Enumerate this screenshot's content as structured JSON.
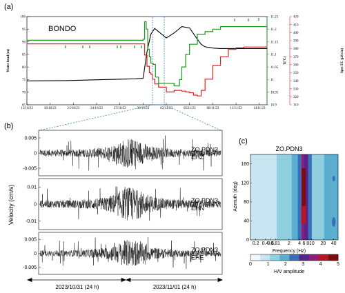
{
  "panel_labels": {
    "a": "(a)",
    "b": "(b)",
    "c": "(c)"
  },
  "colors": {
    "water": "#000000",
    "temp": "#1a9a1a",
    "ec": "#e0201b",
    "selection": "#3a7fc0"
  },
  "chart_data": [
    {
      "type": "line",
      "title": "BONDO",
      "x_tick_labels": [
        "15/10/23",
        "18/10/23",
        "21/10/23",
        "24/10/23",
        "27/10/23",
        "30/10/23",
        "02/11/23",
        "05/11/23",
        "08/11/23",
        "11/11/23",
        "14/11/23"
      ],
      "xlim": [
        0,
        31
      ],
      "y_left": {
        "label": "Water head (m)",
        "ticks": [
          "65",
          "70",
          "75",
          "80",
          "85",
          "90",
          "95",
          "100"
        ],
        "lim": [
          65,
          100
        ]
      },
      "y_mid": {
        "label": "T(°C)",
        "ticks": [
          "10.9",
          "10.95",
          "11",
          "11.05",
          "11.1",
          "11.15",
          "11.2",
          "11.25"
        ],
        "lim": [
          10.9,
          11.25
        ]
      },
      "y_right": {
        "label": "Spec EC (µS/cm)",
        "ticks": [
          "310",
          "320",
          "330",
          "340",
          "350",
          "360",
          "370",
          "380",
          "390",
          "400",
          "410",
          "420"
        ],
        "lim": [
          310,
          420
        ]
      },
      "series": [
        {
          "axis": "left",
          "x": [
            0,
            5,
            10,
            14,
            15,
            15.5,
            16,
            16.5,
            17,
            18,
            19,
            20,
            21,
            22,
            22.5,
            23,
            24,
            25,
            26,
            28,
            31
          ],
          "y": [
            74.5,
            74.6,
            75,
            75.3,
            75.5,
            86,
            93,
            95.3,
            94,
            91.5,
            93.5,
            96,
            95.5,
            91,
            89,
            88,
            87.5,
            87.3,
            87.3,
            87.3,
            87.3
          ]
        },
        {
          "axis": "mid",
          "x": [
            0,
            14.8,
            15,
            15.2,
            15.4,
            15.6,
            15.8,
            16,
            16.3,
            16.6,
            17,
            18,
            18.5,
            19,
            19.3,
            19.7,
            20,
            20.5,
            21,
            22,
            23,
            24,
            24.5,
            25,
            31
          ],
          "y": [
            11.156,
            11.156,
            11.16,
            11.23,
            11.2,
            11.12,
            11.09,
            11.065,
            11.06,
            11.01,
            10.985,
            10.985,
            10.985,
            10.975,
            10.975,
            11.0,
            11.05,
            11.1,
            11.14,
            11.18,
            11.19,
            11.2,
            11.2,
            11.21,
            11.21
          ]
        },
        {
          "axis": "right",
          "x": [
            0,
            14.7,
            15.2,
            15.5,
            15.8,
            16,
            16.2,
            16.5,
            17,
            18,
            19,
            20,
            20.5,
            21,
            21.5,
            22,
            22.5,
            23,
            24,
            25,
            26,
            27,
            28,
            31
          ],
          "y": [
            386,
            386,
            372,
            358,
            350,
            348,
            342,
            336,
            332,
            326,
            328,
            327,
            326,
            325,
            322,
            321,
            328,
            342,
            359,
            370,
            379,
            381,
            382,
            382
          ]
        }
      ]
    },
    {
      "type": "line",
      "title": "",
      "ylabel": "Velocity (cm/s)",
      "time_labels": [
        "2023/10/31 (24 h)",
        "2023/11/01 (24 h)"
      ],
      "series": [
        {
          "name": "ZO.PDN3 EHZ",
          "yticks": [
            "0.005",
            "0",
            "-0.005"
          ],
          "lim": [
            -0.0075,
            0.0075
          ]
        },
        {
          "name": "ZO.PDN3 EHN",
          "yticks": [
            "0.01",
            "0",
            "-0.01"
          ],
          "lim": [
            -0.015,
            0.015
          ]
        },
        {
          "name": "ZO.PDN3 EHE",
          "yticks": [
            "0.005",
            "0",
            "-0.005"
          ],
          "lim": [
            -0.0075,
            0.0075
          ]
        }
      ]
    },
    {
      "type": "heatmap",
      "title": "ZO.PDN3",
      "xlabel": "Frequency (Hz)",
      "ylabel": "Azimuth (deg)",
      "x_tick_labels": [
        "0.2",
        "0.4",
        "0.6",
        "0.81",
        "2",
        "4",
        "6",
        "8",
        "10",
        "20",
        "40"
      ],
      "y_tick_labels": [
        "0",
        "40",
        "80",
        "120",
        "160"
      ],
      "colorbar": {
        "label": "H/V amplitude",
        "ticks": [
          "0",
          "1",
          "2",
          "3",
          "4",
          "5"
        ],
        "colors": [
          "#f1f8fc",
          "#c7e5f0",
          "#8fcfe0",
          "#5aaecf",
          "#3a6eb8",
          "#58238a",
          "#8e1e7a",
          "#b81525",
          "#7e0e0e"
        ]
      }
    }
  ]
}
